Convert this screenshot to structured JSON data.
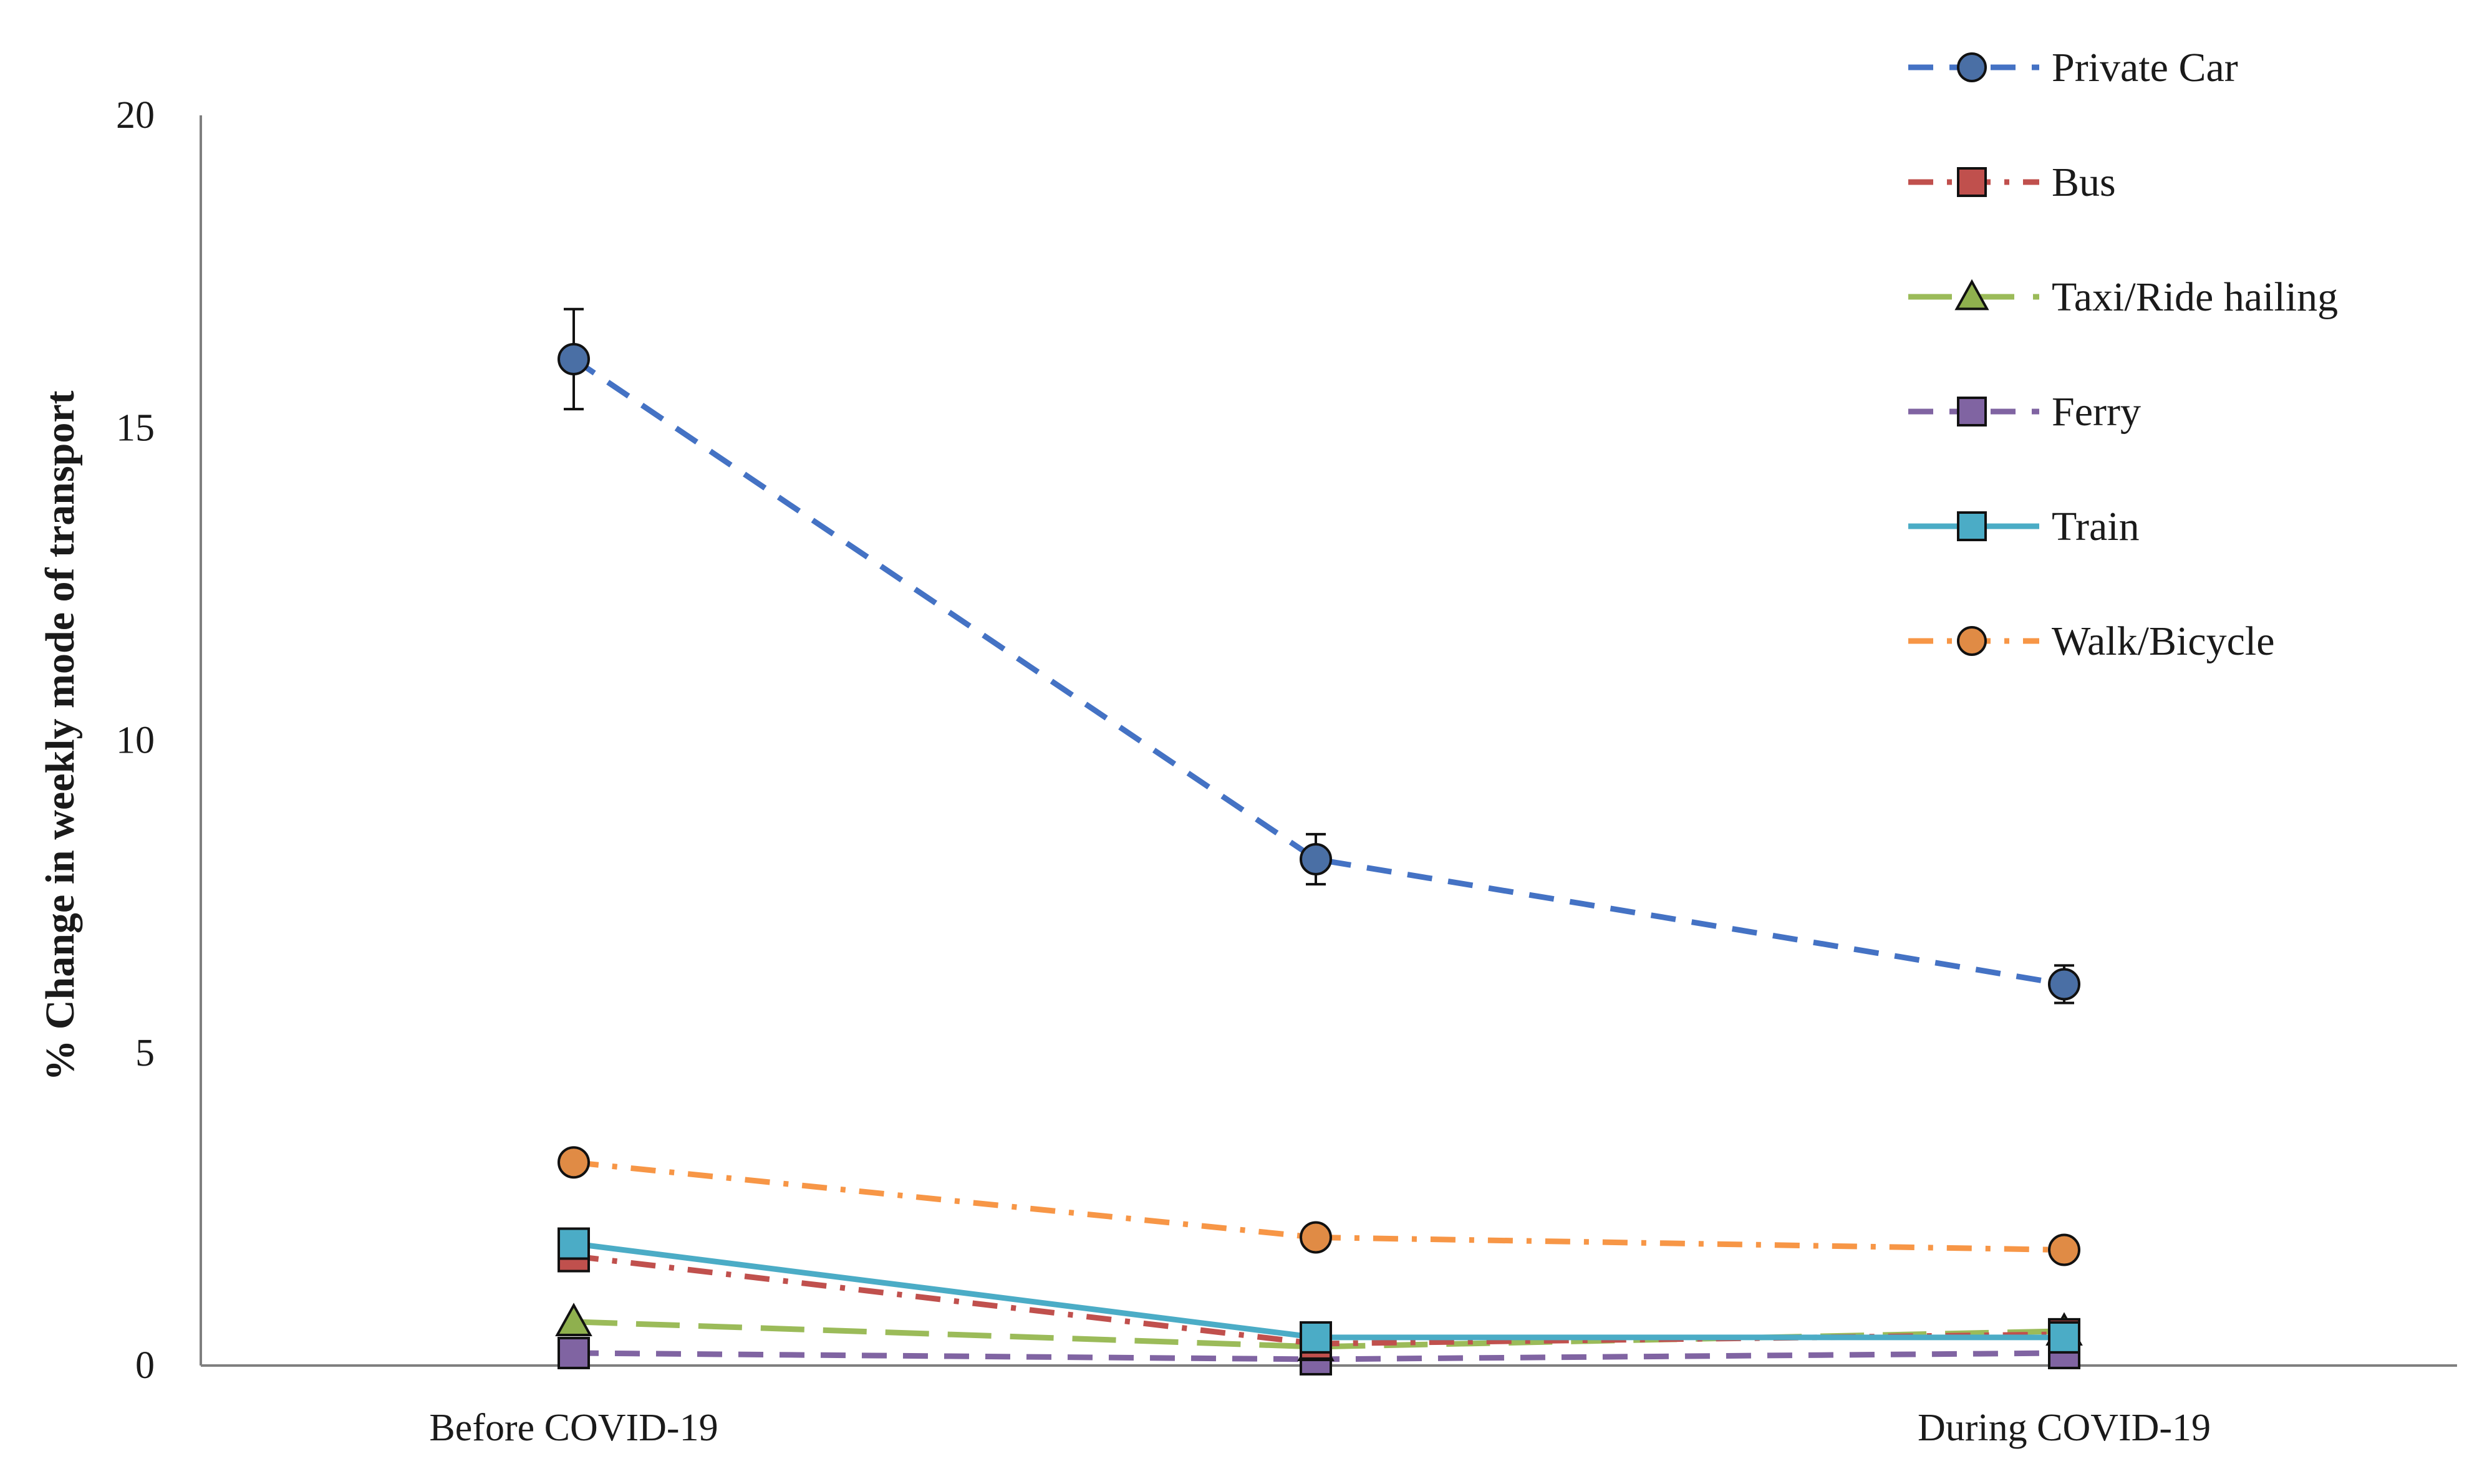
{
  "chart_data": {
    "type": "line",
    "categories": [
      "Before COVID-19",
      "",
      "During COVID-19"
    ],
    "ylabel": "% Change in weekly mode of transport",
    "xlabel": "",
    "ylim": [
      0,
      20
    ],
    "yticks": [
      0,
      5,
      10,
      15,
      20
    ],
    "grid": false,
    "legend_position": "top-right",
    "series": [
      {
        "name": "Private Car",
        "values": [
          16.1,
          8.1,
          6.1
        ],
        "error": [
          0.8,
          0.4,
          0.3
        ],
        "color": "#4472C4",
        "marker_fill": "#4a6fa5",
        "marker": "circle",
        "dash": "dash"
      },
      {
        "name": "Bus",
        "values": [
          1.75,
          0.35,
          0.5
        ],
        "color": "#C0504D",
        "marker_fill": "#c0504d",
        "marker": "square",
        "dash": "dashdot"
      },
      {
        "name": "Taxi/Ride hailing",
        "values": [
          0.7,
          0.3,
          0.55
        ],
        "color": "#9BBB59",
        "marker_fill": "#8fb04e",
        "marker": "triangle",
        "dash": "longdash"
      },
      {
        "name": "Ferry",
        "values": [
          0.2,
          0.1,
          0.2
        ],
        "color": "#8064A2",
        "marker_fill": "#8064a2",
        "marker": "square",
        "dash": "dash"
      },
      {
        "name": "Train",
        "values": [
          1.95,
          0.45,
          0.45
        ],
        "color": "#4BACC6",
        "marker_fill": "#4bacc6",
        "marker": "square",
        "dash": "solid"
      },
      {
        "name": "Walk/Bicycle",
        "values": [
          3.25,
          2.05,
          1.85
        ],
        "color": "#F79646",
        "marker_fill": "#e08b45",
        "marker": "circle",
        "dash": "dashdot"
      }
    ]
  }
}
